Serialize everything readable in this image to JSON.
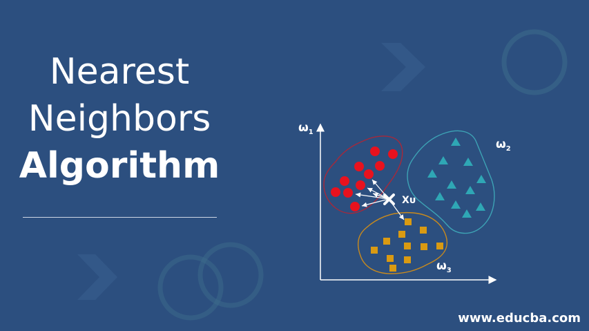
{
  "title": {
    "line1": "Nearest",
    "line2": "Neighbors",
    "line3": "Algorithm"
  },
  "footer": "www.educba.com",
  "diagram": {
    "axis_label_y": "ω",
    "axis_label_y_sub": "1",
    "class_2_label": "ω",
    "class_2_sub": "2",
    "class_3_label": "ω",
    "class_3_sub": "3",
    "query_label": "Xᴜ",
    "classes": {
      "class_1": {
        "shape": "circle",
        "color": "#e8121e",
        "count": 12
      },
      "class_2": {
        "shape": "triangle",
        "color": "#2fa7b5",
        "count": 11
      },
      "class_3": {
        "shape": "square",
        "color": "#d99a12",
        "count": 14
      }
    },
    "nearest_neighbors": 6
  },
  "colors": {
    "background": "#2c4f7f",
    "boundary_red": "#a8283a",
    "boundary_teal": "#3da3b5",
    "boundary_orange": "#c98a1d",
    "axis": "#ffffff",
    "arrow": "#ffffff"
  }
}
